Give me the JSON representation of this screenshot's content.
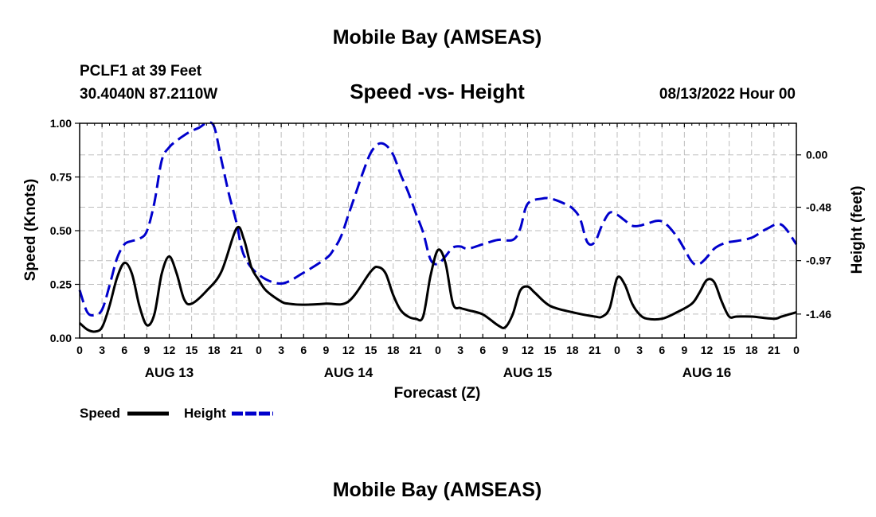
{
  "chart_data": {
    "type": "line",
    "title": "Mobile Bay (AMSEAS)",
    "station": "PCLF1 at 39 Feet",
    "location": "30.4040N  87.2110W",
    "subtitle": "Speed -vs- Height",
    "run": "08/13/2022 Hour 00",
    "xlabel": "Forecast (Z)",
    "ylabel_left": "Speed (Knots)",
    "ylabel_right": "Height (feet)",
    "xlim": [
      0,
      96
    ],
    "ylim_left": [
      0,
      1
    ],
    "ylim_right": [
      -1.68,
      0.29
    ],
    "x_tick_labels": [
      "0",
      "3",
      "6",
      "9",
      "12",
      "15",
      "18",
      "21",
      "0",
      "3",
      "6",
      "9",
      "12",
      "15",
      "18",
      "21",
      "0",
      "3",
      "6",
      "9",
      "12",
      "15",
      "18",
      "21",
      "0",
      "3",
      "6",
      "9",
      "12",
      "15",
      "18",
      "21",
      "0"
    ],
    "left_ticks": [
      {
        "value": 0,
        "label": "0.00"
      },
      {
        "value": 0.25,
        "label": "0.25"
      },
      {
        "value": 0.5,
        "label": "0.50"
      },
      {
        "value": 0.75,
        "label": "0.75"
      },
      {
        "value": 1.0,
        "label": "1.00"
      }
    ],
    "right_ticks": [
      {
        "value": 0.0,
        "label": "0.00"
      },
      {
        "value": -0.48,
        "label": "-0.48"
      },
      {
        "value": -0.97,
        "label": "-0.97"
      },
      {
        "value": -1.46,
        "label": "-1.46"
      }
    ],
    "days": [
      {
        "hour": 12,
        "label": "AUG 13"
      },
      {
        "hour": 36,
        "label": "AUG 14"
      },
      {
        "hour": 60,
        "label": "AUG 15"
      },
      {
        "hour": 84,
        "label": "AUG 16"
      }
    ],
    "grid": true,
    "series": [
      {
        "name": "Speed",
        "axis": "left",
        "color": "#000000",
        "style": "solid",
        "x": [
          0,
          1,
          2,
          3,
          4,
          5,
          6,
          7,
          8,
          9,
          10,
          11,
          12,
          13,
          14,
          15,
          17,
          19,
          21,
          22,
          23,
          24,
          25,
          27,
          28,
          30,
          33,
          36,
          39,
          40,
          41,
          42,
          43,
          44,
          45,
          46,
          47,
          48,
          49,
          50,
          51,
          52,
          54,
          56,
          57,
          58,
          59,
          60,
          61,
          63,
          66,
          69,
          70,
          71,
          72,
          73,
          74,
          75,
          76,
          78,
          80,
          82,
          83,
          84,
          85,
          86,
          87,
          88,
          90,
          93,
          94,
          96
        ],
        "values": [
          0.07,
          0.04,
          0.03,
          0.05,
          0.15,
          0.28,
          0.35,
          0.3,
          0.15,
          0.06,
          0.11,
          0.3,
          0.38,
          0.3,
          0.18,
          0.16,
          0.22,
          0.31,
          0.51,
          0.46,
          0.33,
          0.27,
          0.22,
          0.17,
          0.16,
          0.155,
          0.16,
          0.17,
          0.31,
          0.33,
          0.3,
          0.2,
          0.13,
          0.1,
          0.09,
          0.1,
          0.29,
          0.41,
          0.35,
          0.16,
          0.14,
          0.13,
          0.11,
          0.06,
          0.05,
          0.11,
          0.22,
          0.24,
          0.21,
          0.15,
          0.12,
          0.1,
          0.1,
          0.14,
          0.28,
          0.25,
          0.16,
          0.11,
          0.09,
          0.09,
          0.12,
          0.16,
          0.21,
          0.27,
          0.26,
          0.17,
          0.1,
          0.1,
          0.1,
          0.09,
          0.1,
          0.12
        ]
      },
      {
        "name": "Height",
        "axis": "right",
        "color": "#0000cc",
        "style": "dashed",
        "x": [
          0,
          1,
          2,
          3,
          4,
          5,
          6,
          7,
          8,
          9,
          10,
          11,
          12,
          13,
          14,
          15,
          16,
          17,
          18,
          19,
          20,
          21,
          22,
          24,
          27,
          30,
          33,
          34,
          35,
          36,
          37,
          38,
          39,
          40,
          41,
          42,
          43,
          44,
          45,
          46,
          47,
          48,
          49,
          50,
          51,
          52,
          54,
          56,
          58,
          59,
          60,
          62,
          63,
          64,
          65,
          66,
          67,
          68,
          69,
          70,
          71,
          72,
          73,
          74,
          75,
          76,
          78,
          80,
          82,
          83,
          84,
          85,
          86,
          87,
          88,
          90,
          92,
          94,
          96
        ],
        "values": [
          -1.24,
          -1.44,
          -1.47,
          -1.42,
          -1.2,
          -0.95,
          -0.82,
          -0.79,
          -0.77,
          -0.7,
          -0.44,
          -0.05,
          0.07,
          0.13,
          0.18,
          0.22,
          0.25,
          0.29,
          0.26,
          -0.05,
          -0.36,
          -0.62,
          -0.92,
          -1.1,
          -1.18,
          -1.08,
          -0.95,
          -0.87,
          -0.75,
          -0.55,
          -0.35,
          -0.15,
          0.02,
          0.1,
          0.09,
          0.0,
          -0.18,
          -0.34,
          -0.53,
          -0.71,
          -0.96,
          -1.0,
          -0.93,
          -0.85,
          -0.84,
          -0.86,
          -0.82,
          -0.78,
          -0.78,
          -0.68,
          -0.45,
          -0.4,
          -0.4,
          -0.42,
          -0.45,
          -0.49,
          -0.58,
          -0.8,
          -0.8,
          -0.64,
          -0.53,
          -0.55,
          -0.6,
          -0.65,
          -0.65,
          -0.63,
          -0.61,
          -0.75,
          -0.98,
          -1.0,
          -0.94,
          -0.86,
          -0.82,
          -0.8,
          -0.79,
          -0.76,
          -0.68,
          -0.64,
          -0.82
        ]
      }
    ],
    "legend": [
      {
        "label": "Speed",
        "color": "#000000",
        "style": "solid"
      },
      {
        "label": "Height",
        "color": "#0000cc",
        "style": "dashed"
      }
    ],
    "footer_title": "Mobile Bay (AMSEAS)"
  }
}
